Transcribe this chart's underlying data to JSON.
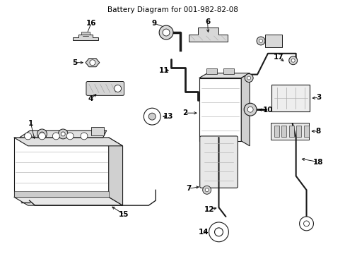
{
  "title": "Battery Diagram for 001-982-82-08",
  "bg_color": "#ffffff",
  "line_color": "#1a1a1a",
  "gray_fill": "#d8d8d8",
  "light_gray": "#eeeeee"
}
